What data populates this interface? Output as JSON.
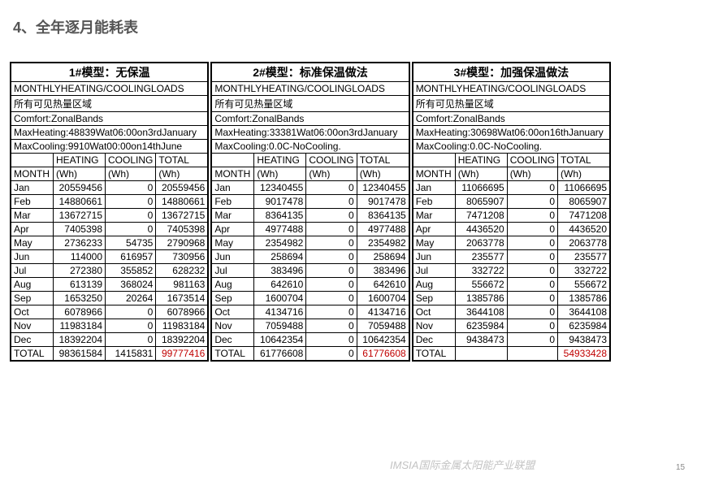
{
  "title": "4、全年逐月能耗表",
  "watermark": "IMSIA国际金属太阳能产业联盟",
  "page_number": "15",
  "column_headers": {
    "month": "MONTH",
    "heating": "HEATING",
    "cooling": "COOLING",
    "total": "TOTAL",
    "unit": "(Wh)"
  },
  "row_total_label": "TOTAL",
  "months": [
    "Jan",
    "Feb",
    "Mar",
    "Apr",
    "May",
    "Jun",
    "Jul",
    "Aug",
    "Sep",
    "Oct",
    "Nov",
    "Dec"
  ],
  "models": [
    {
      "title": "1#模型：无保温",
      "loads_label": "MONTHLYHEATING/COOLINGLOADS",
      "zones_label": "所有可见热量区域",
      "comfort_label": "Comfort:ZonalBands",
      "max_heating": "MaxHeating:48839Wat06:00on3rdJanuary",
      "max_cooling": "MaxCooling:9910Wat00:00on14thJune",
      "rows": [
        {
          "h": "20559456",
          "c": "0",
          "t": "20559456"
        },
        {
          "h": "14880661",
          "c": "0",
          "t": "14880661"
        },
        {
          "h": "13672715",
          "c": "0",
          "t": "13672715"
        },
        {
          "h": "7405398",
          "c": "0",
          "t": "7405398"
        },
        {
          "h": "2736233",
          "c": "54735",
          "t": "2790968"
        },
        {
          "h": "114000",
          "c": "616957",
          "t": "730956"
        },
        {
          "h": "272380",
          "c": "355852",
          "t": "628232"
        },
        {
          "h": "613139",
          "c": "368024",
          "t": "981163"
        },
        {
          "h": "1653250",
          "c": "20264",
          "t": "1673514"
        },
        {
          "h": "6078966",
          "c": "0",
          "t": "6078966"
        },
        {
          "h": "11983184",
          "c": "0",
          "t": "11983184"
        },
        {
          "h": "18392204",
          "c": "0",
          "t": "18392204"
        }
      ],
      "totals": {
        "h": "98361584",
        "c": "1415831",
        "t": "99777416"
      },
      "total_red": true
    },
    {
      "title": "2#模型：标准保温做法",
      "loads_label": "MONTHLYHEATING/COOLINGLOADS",
      "zones_label": "所有可见热量区域",
      "comfort_label": "Comfort:ZonalBands",
      "max_heating": "MaxHeating:33381Wat06:00on3rdJanuary",
      "max_cooling": "MaxCooling:0.0C-NoCooling.",
      "rows": [
        {
          "h": "12340455",
          "c": "0",
          "t": "12340455"
        },
        {
          "h": "9017478",
          "c": "0",
          "t": "9017478"
        },
        {
          "h": "8364135",
          "c": "0",
          "t": "8364135"
        },
        {
          "h": "4977488",
          "c": "0",
          "t": "4977488"
        },
        {
          "h": "2354982",
          "c": "0",
          "t": "2354982"
        },
        {
          "h": "258694",
          "c": "0",
          "t": "258694"
        },
        {
          "h": "383496",
          "c": "0",
          "t": "383496"
        },
        {
          "h": "642610",
          "c": "0",
          "t": "642610"
        },
        {
          "h": "1600704",
          "c": "0",
          "t": "1600704"
        },
        {
          "h": "4134716",
          "c": "0",
          "t": "4134716"
        },
        {
          "h": "7059488",
          "c": "0",
          "t": "7059488"
        },
        {
          "h": "10642354",
          "c": "0",
          "t": "10642354"
        }
      ],
      "totals": {
        "h": "61776608",
        "c": "0",
        "t": "61776608"
      },
      "total_red": true
    },
    {
      "title": "3#模型：加强保温做法",
      "loads_label": "MONTHLYHEATING/COOLINGLOADS",
      "zones_label": "所有可见热量区域",
      "comfort_label": "Comfort:ZonalBands",
      "max_heating": "MaxHeating:30698Wat06:00on16thJanuary",
      "max_cooling": "MaxCooling:0.0C-NoCooling.",
      "rows": [
        {
          "h": "11066695",
          "c": "0",
          "t": "11066695"
        },
        {
          "h": "8065907",
          "c": "0",
          "t": "8065907"
        },
        {
          "h": "7471208",
          "c": "0",
          "t": "7471208"
        },
        {
          "h": "4436520",
          "c": "0",
          "t": "4436520"
        },
        {
          "h": "2063778",
          "c": "0",
          "t": "2063778"
        },
        {
          "h": "235577",
          "c": "0",
          "t": "235577"
        },
        {
          "h": "332722",
          "c": "0",
          "t": "332722"
        },
        {
          "h": "556672",
          "c": "0",
          "t": "556672"
        },
        {
          "h": "1385786",
          "c": "0",
          "t": "1385786"
        },
        {
          "h": "3644108",
          "c": "0",
          "t": "3644108"
        },
        {
          "h": "6235984",
          "c": "0",
          "t": "6235984"
        },
        {
          "h": "9438473",
          "c": "0",
          "t": "9438473"
        }
      ],
      "totals": {
        "h": "",
        "c": "",
        "t": "54933428"
      },
      "total_red": true
    }
  ]
}
